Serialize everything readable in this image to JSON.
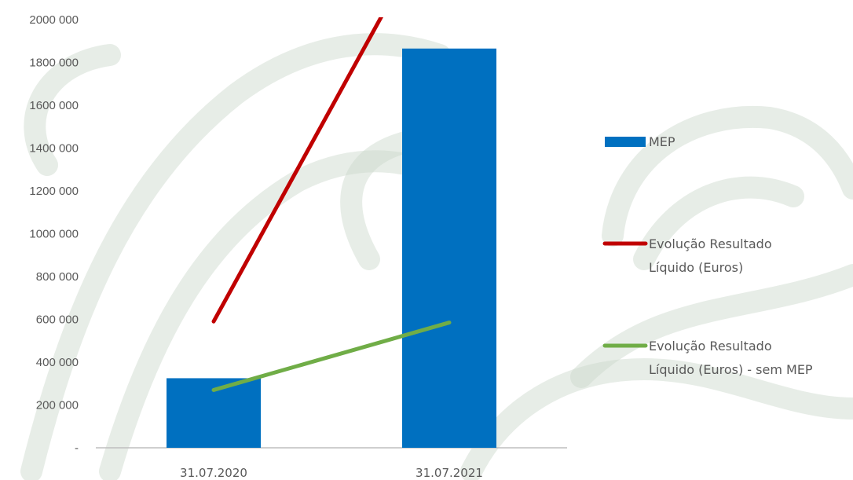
{
  "chart_data": {
    "type": "bar",
    "categories": [
      "31.07.2020",
      "31.07.2021"
    ],
    "series": [
      {
        "name": "MEP",
        "kind": "bar",
        "color": "#0070C0",
        "values": [
          325000,
          1865000
        ]
      },
      {
        "name_lines": [
          "Evolução Resultado",
          "Líquido (Euros)"
        ],
        "kind": "line",
        "color": "#C00000",
        "values": [
          590000,
          2590000
        ]
      },
      {
        "name_lines": [
          "Evolução Resultado",
          "Líquido (Euros) - sem MEP"
        ],
        "kind": "line",
        "color": "#70AD47",
        "values": [
          270000,
          585000
        ]
      }
    ],
    "yticks": [
      {
        "value": 0,
        "label": "-"
      },
      {
        "value": 200000,
        "label": "200 000"
      },
      {
        "value": 400000,
        "label": "400 000"
      },
      {
        "value": 600000,
        "label": "600 000"
      },
      {
        "value": 800000,
        "label": "800 000"
      },
      {
        "value": 1000000,
        "label": "1000 000"
      },
      {
        "value": 1200000,
        "label": "1200 000"
      },
      {
        "value": 1400000,
        "label": "1400 000"
      },
      {
        "value": 1600000,
        "label": "1600 000"
      },
      {
        "value": 1800000,
        "label": "1800 000"
      },
      {
        "value": 2000000,
        "label": "2000 000"
      }
    ],
    "ylim": [
      0,
      2000000
    ],
    "grid": false,
    "legend_position": "right",
    "watermark_color": "#C9D6C9"
  }
}
